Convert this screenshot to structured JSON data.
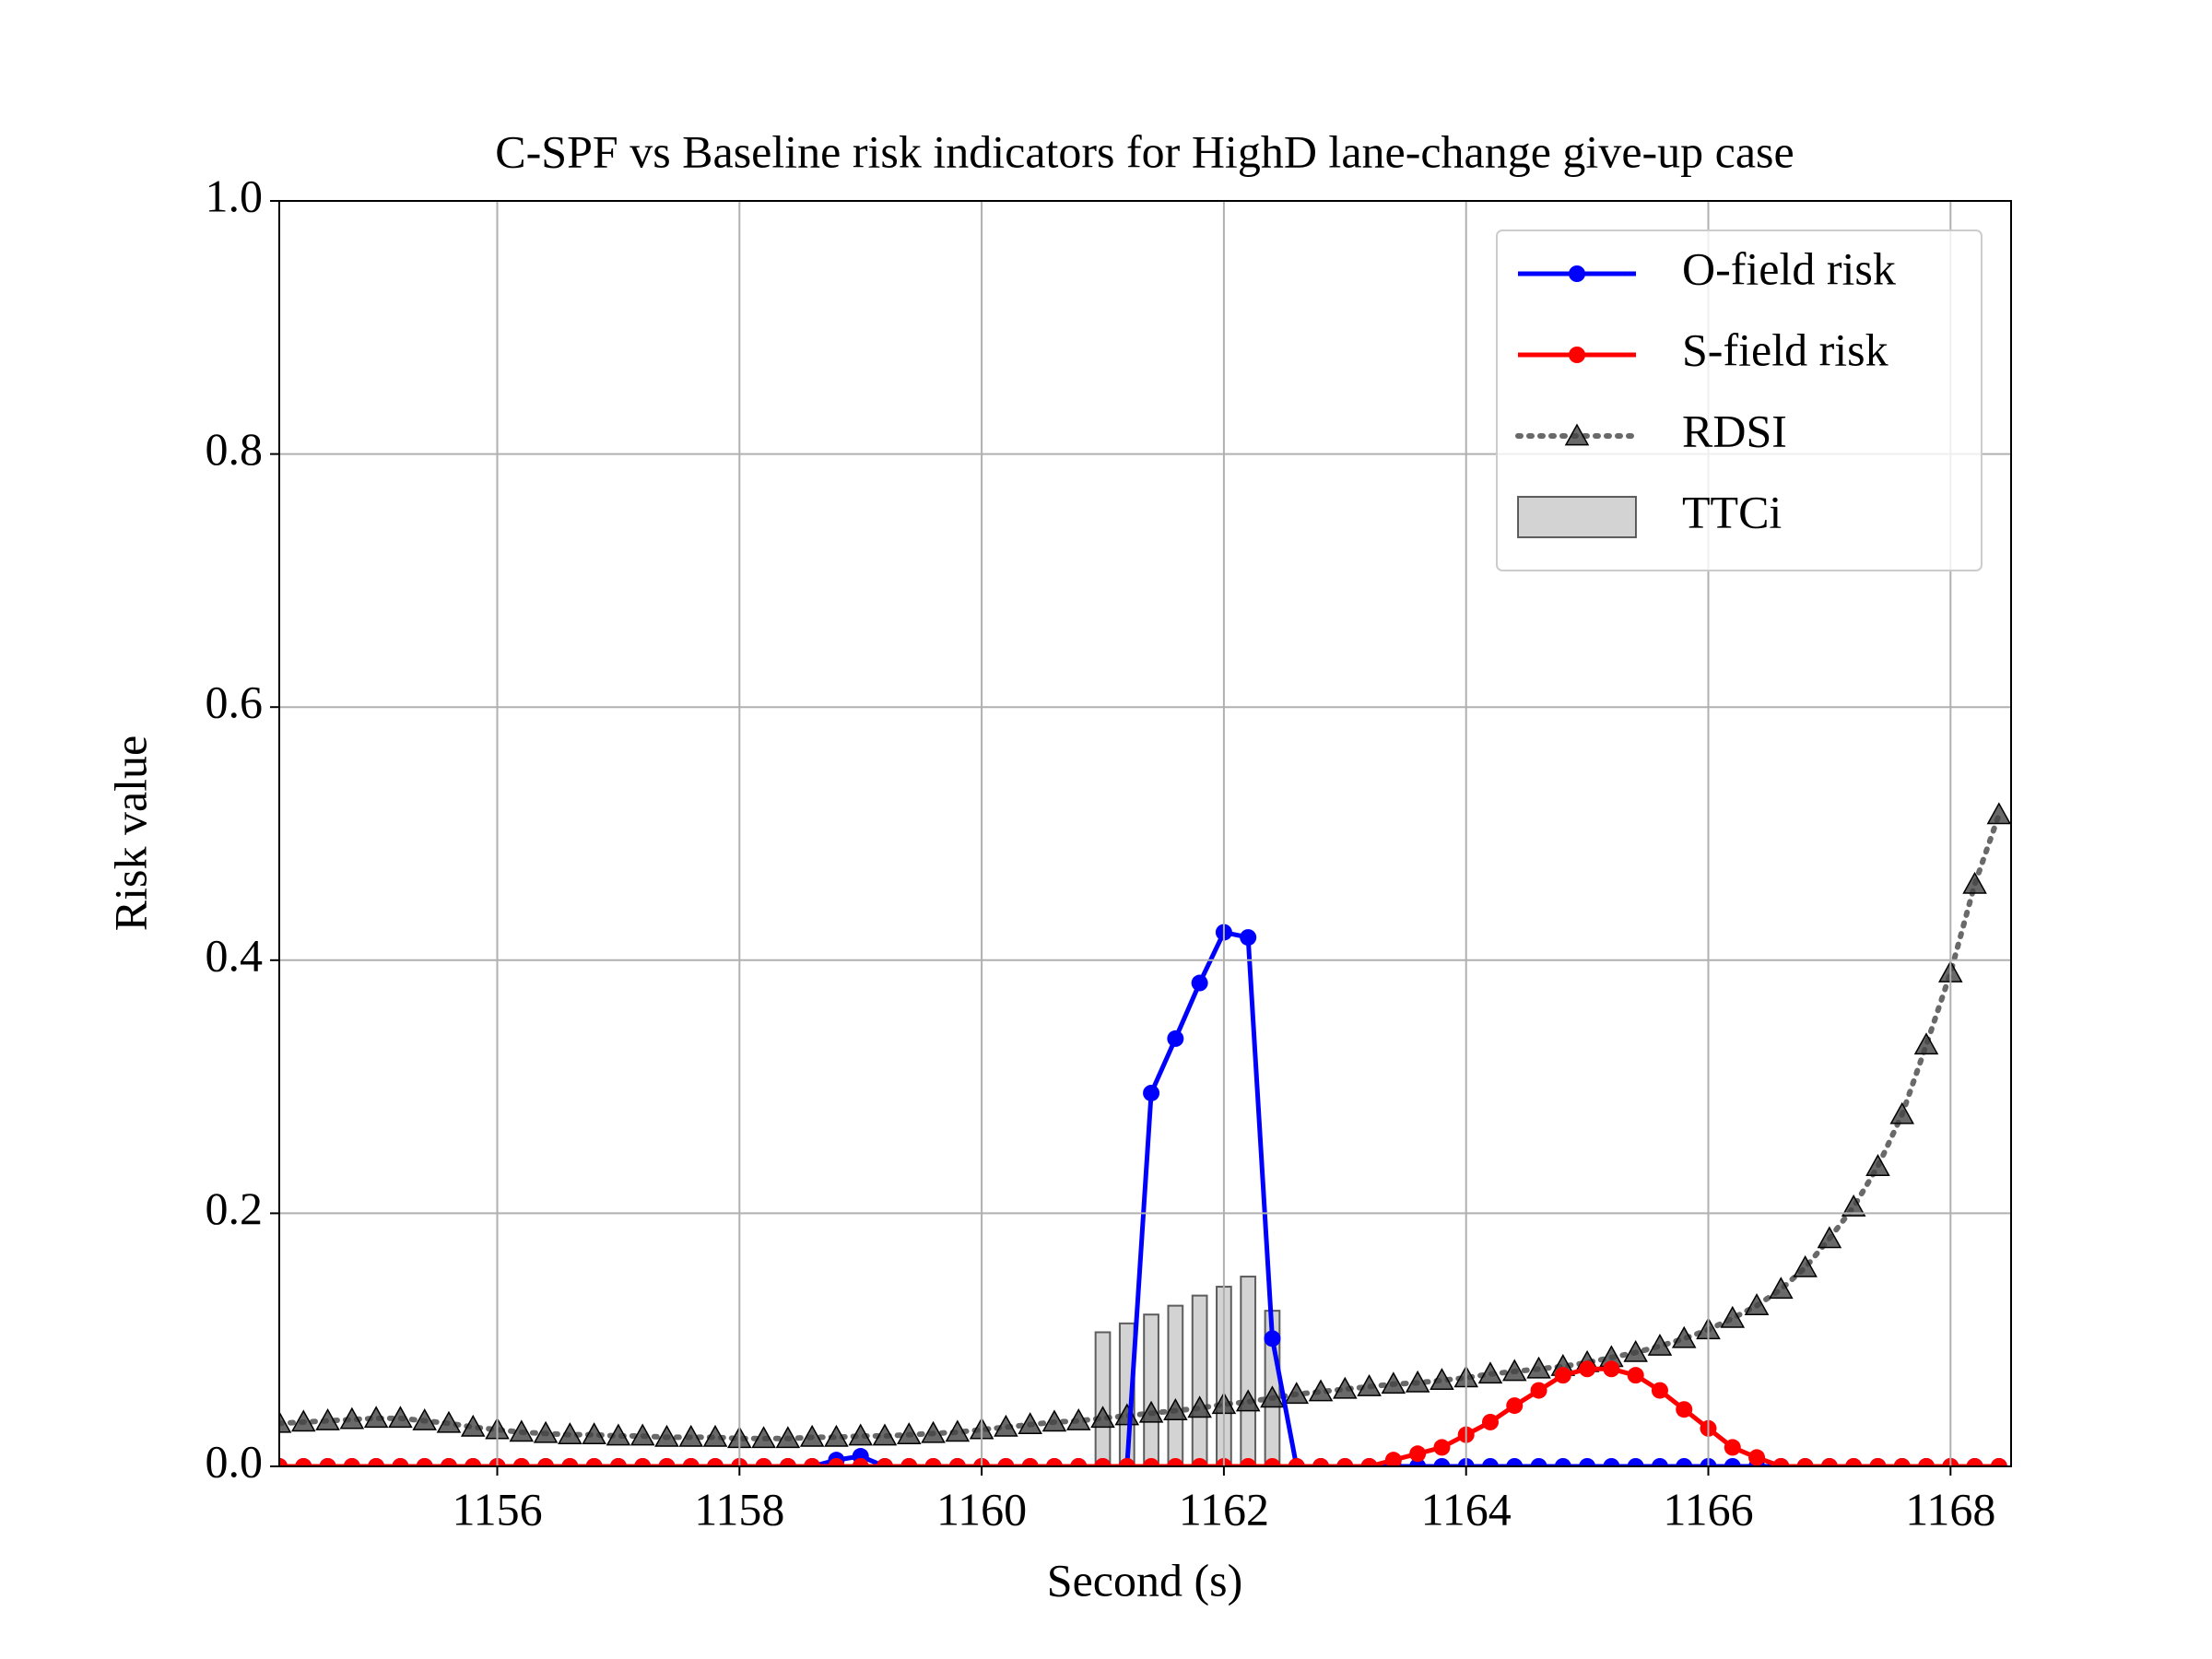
{
  "chart_data": {
    "type": "line",
    "title": "C-SPF vs Baseline risk indicators for HighD lane-change give-up case",
    "x_label": "Second (s)",
    "y_label": "Risk value",
    "x": [
      1154.2,
      1154.4,
      1154.6,
      1154.8,
      1155,
      1155.2,
      1155.4,
      1155.6,
      1155.8,
      1156,
      1156.2,
      1156.4,
      1156.6,
      1156.8,
      1157,
      1157.2,
      1157.4,
      1157.6,
      1157.8,
      1158,
      1158.2,
      1158.4,
      1158.6,
      1158.8,
      1159,
      1159.2,
      1159.4,
      1159.6,
      1159.8,
      1160,
      1160.2,
      1160.4,
      1160.6,
      1160.8,
      1161,
      1161.2,
      1161.4,
      1161.6,
      1161.8,
      1162,
      1162.2,
      1162.4,
      1162.6,
      1162.8,
      1163,
      1163.2,
      1163.4,
      1163.6,
      1163.8,
      1164,
      1164.2,
      1164.4,
      1164.6,
      1164.8,
      1165,
      1165.2,
      1165.4,
      1165.6,
      1165.8,
      1166,
      1166.2,
      1166.4,
      1166.6,
      1166.8,
      1167,
      1167.2,
      1167.4,
      1167.6,
      1167.8,
      1168,
      1168.2,
      1168.4
    ],
    "series": [
      {
        "name": "TTCi",
        "color": "#d3d3d3",
        "style": "bar",
        "values": [
          null,
          null,
          null,
          null,
          null,
          null,
          null,
          null,
          null,
          null,
          null,
          null,
          null,
          null,
          null,
          null,
          null,
          null,
          null,
          null,
          null,
          null,
          null,
          null,
          null,
          null,
          null,
          null,
          null,
          null,
          null,
          null,
          null,
          null,
          0.106,
          0.113,
          0.12,
          0.127,
          0.135,
          0.142,
          0.15,
          0.123,
          null,
          null,
          null,
          null,
          null,
          null,
          null,
          null,
          null,
          null,
          null,
          null,
          null,
          null,
          null,
          null,
          null,
          null,
          null,
          null,
          null,
          null,
          null,
          null,
          null,
          null,
          null,
          null,
          null,
          null
        ]
      },
      {
        "name": "RDSI",
        "color": "#444444",
        "style": "dotted",
        "marker": "triangle",
        "values": [
          0.034,
          0.035,
          0.036,
          0.037,
          0.038,
          0.038,
          0.036,
          0.034,
          0.031,
          0.029,
          0.027,
          0.026,
          0.025,
          0.025,
          0.024,
          0.024,
          0.023,
          0.023,
          0.023,
          0.022,
          0.022,
          0.022,
          0.023,
          0.023,
          0.024,
          0.024,
          0.025,
          0.026,
          0.027,
          0.029,
          0.031,
          0.033,
          0.035,
          0.036,
          0.038,
          0.04,
          0.042,
          0.044,
          0.046,
          0.049,
          0.051,
          0.054,
          0.057,
          0.059,
          0.061,
          0.063,
          0.065,
          0.066,
          0.068,
          0.07,
          0.073,
          0.075,
          0.077,
          0.079,
          0.082,
          0.086,
          0.09,
          0.095,
          0.101,
          0.108,
          0.117,
          0.127,
          0.14,
          0.157,
          0.18,
          0.205,
          0.237,
          0.278,
          0.333,
          0.39,
          0.46,
          0.515
        ]
      },
      {
        "name": "O-field risk",
        "color": "#0000ff",
        "style": "solid",
        "marker": "circle",
        "values": [
          0,
          0,
          0,
          0,
          0,
          0,
          0,
          0,
          0,
          0,
          0,
          0,
          0,
          0,
          0,
          0,
          0,
          0,
          0,
          0,
          0,
          0,
          0,
          0.005,
          0.008,
          0,
          0,
          0,
          0,
          0,
          0,
          0,
          0,
          0,
          0,
          0,
          0.295,
          0.338,
          0.382,
          0.422,
          0.418,
          0.101,
          0,
          0,
          0,
          0,
          0,
          0,
          0,
          0,
          0,
          0,
          0,
          0,
          0,
          0,
          0,
          0,
          0,
          0,
          0,
          0,
          0,
          0,
          0,
          0,
          0,
          0,
          0,
          0,
          0,
          0
        ]
      },
      {
        "name": "S-field risk",
        "color": "#ff0000",
        "style": "solid",
        "marker": "circle",
        "values": [
          0,
          0,
          0,
          0,
          0,
          0,
          0,
          0,
          0,
          0,
          0,
          0,
          0,
          0,
          0,
          0,
          0,
          0,
          0,
          0,
          0,
          0,
          0,
          0,
          0,
          0,
          0,
          0,
          0,
          0,
          0,
          0,
          0,
          0,
          0,
          0,
          0,
          0,
          0,
          0,
          0,
          0,
          0,
          0,
          0,
          0,
          0.005,
          0.01,
          0.015,
          0.025,
          0.035,
          0.048,
          0.06,
          0.072,
          0.077,
          0.077,
          0.072,
          0.06,
          0.045,
          0.03,
          0.015,
          0.007,
          0,
          0,
          0,
          0,
          0,
          0,
          0,
          0,
          0,
          0
        ]
      }
    ],
    "legend_order": [
      2,
      3,
      1,
      0
    ],
    "xlim": [
      1154.2,
      1168.5
    ],
    "xticks": [
      1156,
      1158,
      1160,
      1162,
      1164,
      1166,
      1168
    ],
    "ylim": [
      0,
      1
    ],
    "yticks": [
      {
        "value": 0,
        "label": "0.0"
      },
      0.2,
      0.4,
      0.6,
      0.8,
      {
        "value": 1,
        "label": "1.0"
      }
    ],
    "grid": true,
    "legend": "upper right"
  }
}
